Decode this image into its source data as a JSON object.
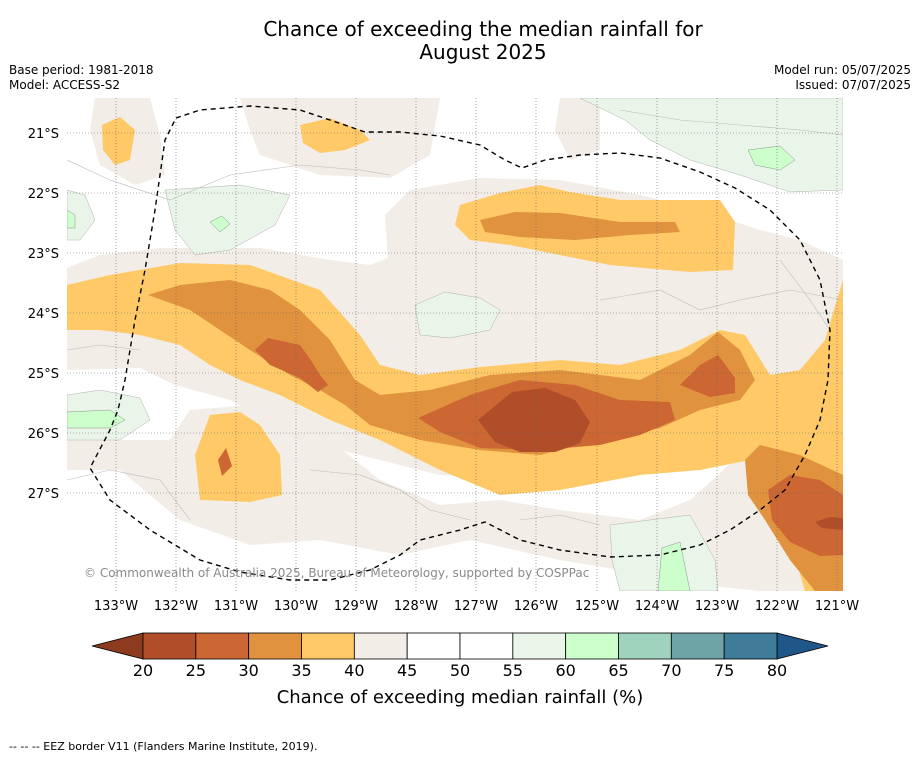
{
  "title_line1": "Chance of exceeding the median rainfall for",
  "title_line2": "August 2025",
  "base_period": "Base period: 1981-2018",
  "model": "Model: ACCESS-S2",
  "model_run": "Model run: 05/07/2025",
  "issued": "Issued: 07/07/2025",
  "copyright": "© Commonwealth of Australia 2025, Bureau of Meteorology, supported by COSPPac",
  "footer_note": "--  --  -- EEZ border V11 (Flanders Marine Institute, 2019).",
  "map": {
    "lat_labels": [
      "21°S",
      "22°S",
      "23°S",
      "24°S",
      "25°S",
      "26°S",
      "27°S"
    ],
    "lon_labels": [
      "133°W",
      "132°W",
      "131°W",
      "130°W",
      "129°W",
      "128°W",
      "127°W",
      "126°W",
      "125°W",
      "124°W",
      "123°W",
      "122°W",
      "121°W"
    ]
  },
  "colorbar": {
    "label": "Chance of exceeding median rainfall (%)",
    "ticks": [
      "20",
      "25",
      "30",
      "35",
      "40",
      "45",
      "50",
      "55",
      "60",
      "65",
      "70",
      "75",
      "80"
    ],
    "colors": [
      "#b14e2a",
      "#cc6633",
      "#e0923e",
      "#fec966",
      "#f2ede6",
      "#ffffff",
      "#ffffff",
      "#eaf5e9",
      "#ccffcc",
      "#9fd3bd",
      "#6ea4a6",
      "#3f7c99"
    ],
    "under_color": "#8c3b1e",
    "over_color": "#1f5789"
  }
}
